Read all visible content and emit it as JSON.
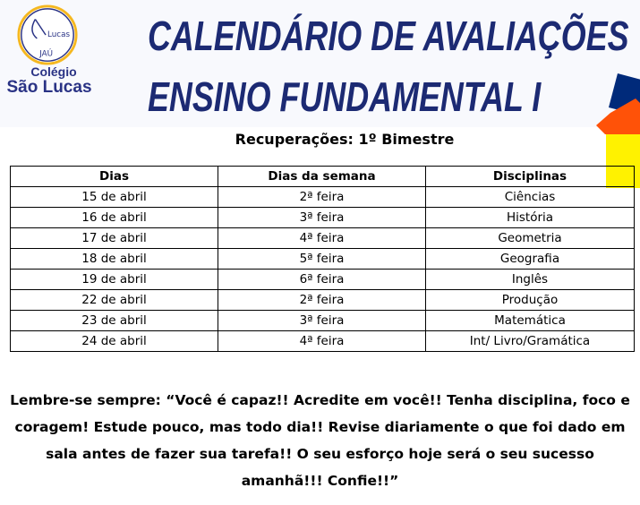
{
  "logo": {
    "inner_text": "Lucas",
    "city": "JAÚ",
    "line1": "Colégio",
    "line2": "São Lucas"
  },
  "header": {
    "title_line1": "CALENDÁRIO DE AVALIAÇÕES",
    "title_line2": "ENSINO FUNDAMENTAL I"
  },
  "subtitle": "Recuperações: 1º Bimestre",
  "table": {
    "headers": [
      "Dias",
      "Dias da semana",
      "Disciplinas"
    ],
    "rows": [
      [
        "15 de abril",
        "2ª feira",
        "Ciências"
      ],
      [
        "16 de abril",
        "3ª feira",
        "História"
      ],
      [
        "17 de abril",
        "4ª feira",
        "Geometria"
      ],
      [
        "18 de abril",
        "5ª feira",
        "Geografia"
      ],
      [
        "19 de abril",
        "6ª feira",
        "Inglês"
      ],
      [
        "22 de abril",
        "2ª feira",
        "Produção"
      ],
      [
        "23 de abril",
        "3ª feira",
        "Matemática"
      ],
      [
        "24 de abril",
        "4ª feira",
        "Int/ Livro/Gramática"
      ]
    ]
  },
  "quote": "Lembre-se sempre: “Você é capaz!! Acredite em você!! Tenha disciplina, foco e coragem! Estude pouco, mas todo dia!! Revise diariamente o que foi dado em sala antes de fazer sua tarefa!! O seu esforço hoje será o seu sucesso amanhã!!! Confie!!”",
  "colors": {
    "navy": "#1c2a73",
    "orange": "#ff5208",
    "yellow": "#fff200",
    "gold": "#f5b820"
  }
}
